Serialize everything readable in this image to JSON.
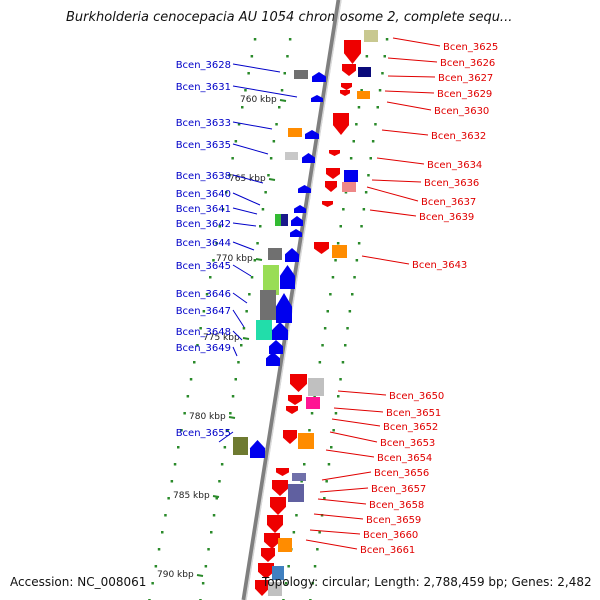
{
  "title": "Burkholderia cenocepacia AU 1054 chromosome 2, complete sequ...",
  "footer": {
    "accession": "Accession: NC_008061",
    "topology": "Topology: circular; Length: 2,788,459 bp; Genes: 2,482"
  },
  "colors": {
    "left_label": "#0000c8",
    "right_label": "#e00000",
    "axis": "#808080",
    "tick": "#2a8a2a"
  },
  "scale_ticks": [
    "760 kbp",
    "765 kbp",
    "770 kbp",
    "775 kbp",
    "780 kbp",
    "785 kbp",
    "790 kbp"
  ],
  "left_genes": [
    "Bcen_3628",
    "Bcen_3631",
    "Bcen_3633",
    "Bcen_3635",
    "Bcen_3638",
    "Bcen_3640",
    "Bcen_3641",
    "Bcen_3642",
    "Bcen_3644",
    "Bcen_3645",
    "Bcen_3646",
    "Bcen_3647",
    "Bcen_3648",
    "Bcen_3649",
    "Bcen_3655"
  ],
  "right_genes": [
    "Bcen_3625",
    "Bcen_3626",
    "Bcen_3627",
    "Bcen_3629",
    "Bcen_3630",
    "Bcen_3632",
    "Bcen_3634",
    "Bcen_3636",
    "Bcen_3637",
    "Bcen_3639",
    "Bcen_3643",
    "Bcen_3650",
    "Bcen_3651",
    "Bcen_3652",
    "Bcen_3653",
    "Bcen_3654",
    "Bcen_3656",
    "Bcen_3657",
    "Bcen_3658",
    "Bcen_3659",
    "Bcen_3660",
    "Bcen_3661"
  ]
}
